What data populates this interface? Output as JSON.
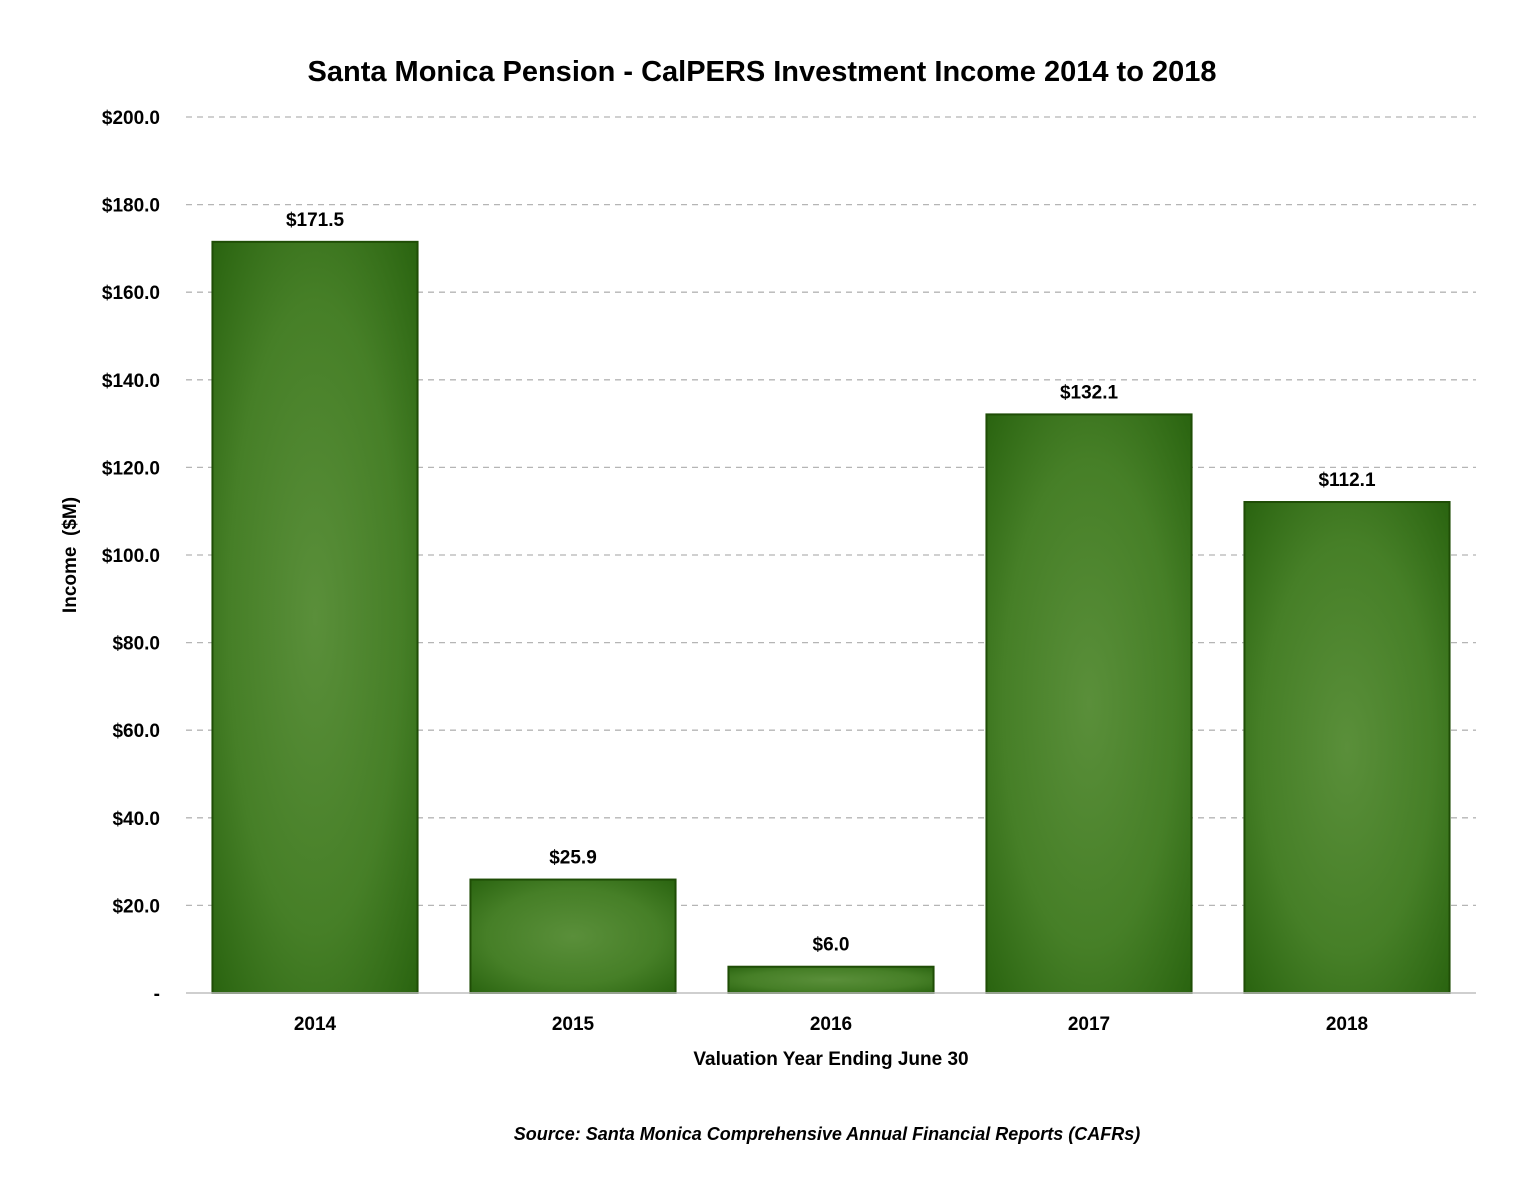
{
  "chart_data": {
    "type": "bar",
    "title": "Santa Monica Pension - CalPERS Investment Income 2014 to 2018",
    "xlabel": "Valuation Year Ending June 30",
    "ylabel": "Income  ($M)",
    "categories": [
      "2014",
      "2015",
      "2016",
      "2017",
      "2018"
    ],
    "values": [
      171.5,
      25.9,
      6.0,
      132.1,
      112.1
    ],
    "data_labels": [
      "$171.5",
      "$25.9",
      "$6.0",
      "$132.1",
      "$112.1"
    ],
    "ylim": [
      0,
      200
    ],
    "yticks": [
      0,
      20,
      40,
      60,
      80,
      100,
      120,
      140,
      160,
      180,
      200
    ],
    "ytick_labels": [
      "-",
      "$20.0",
      "$40.0",
      "$60.0",
      "$80.0",
      "$100.0",
      "$120.0",
      "$140.0",
      "$160.0",
      "$180.0",
      "$200.0"
    ],
    "grid": true,
    "legend": "none",
    "bar_color": "#3f7a1f",
    "source": "Source: Santa Monica Comprehensive Annual Financial Reports (CAFRs)"
  }
}
